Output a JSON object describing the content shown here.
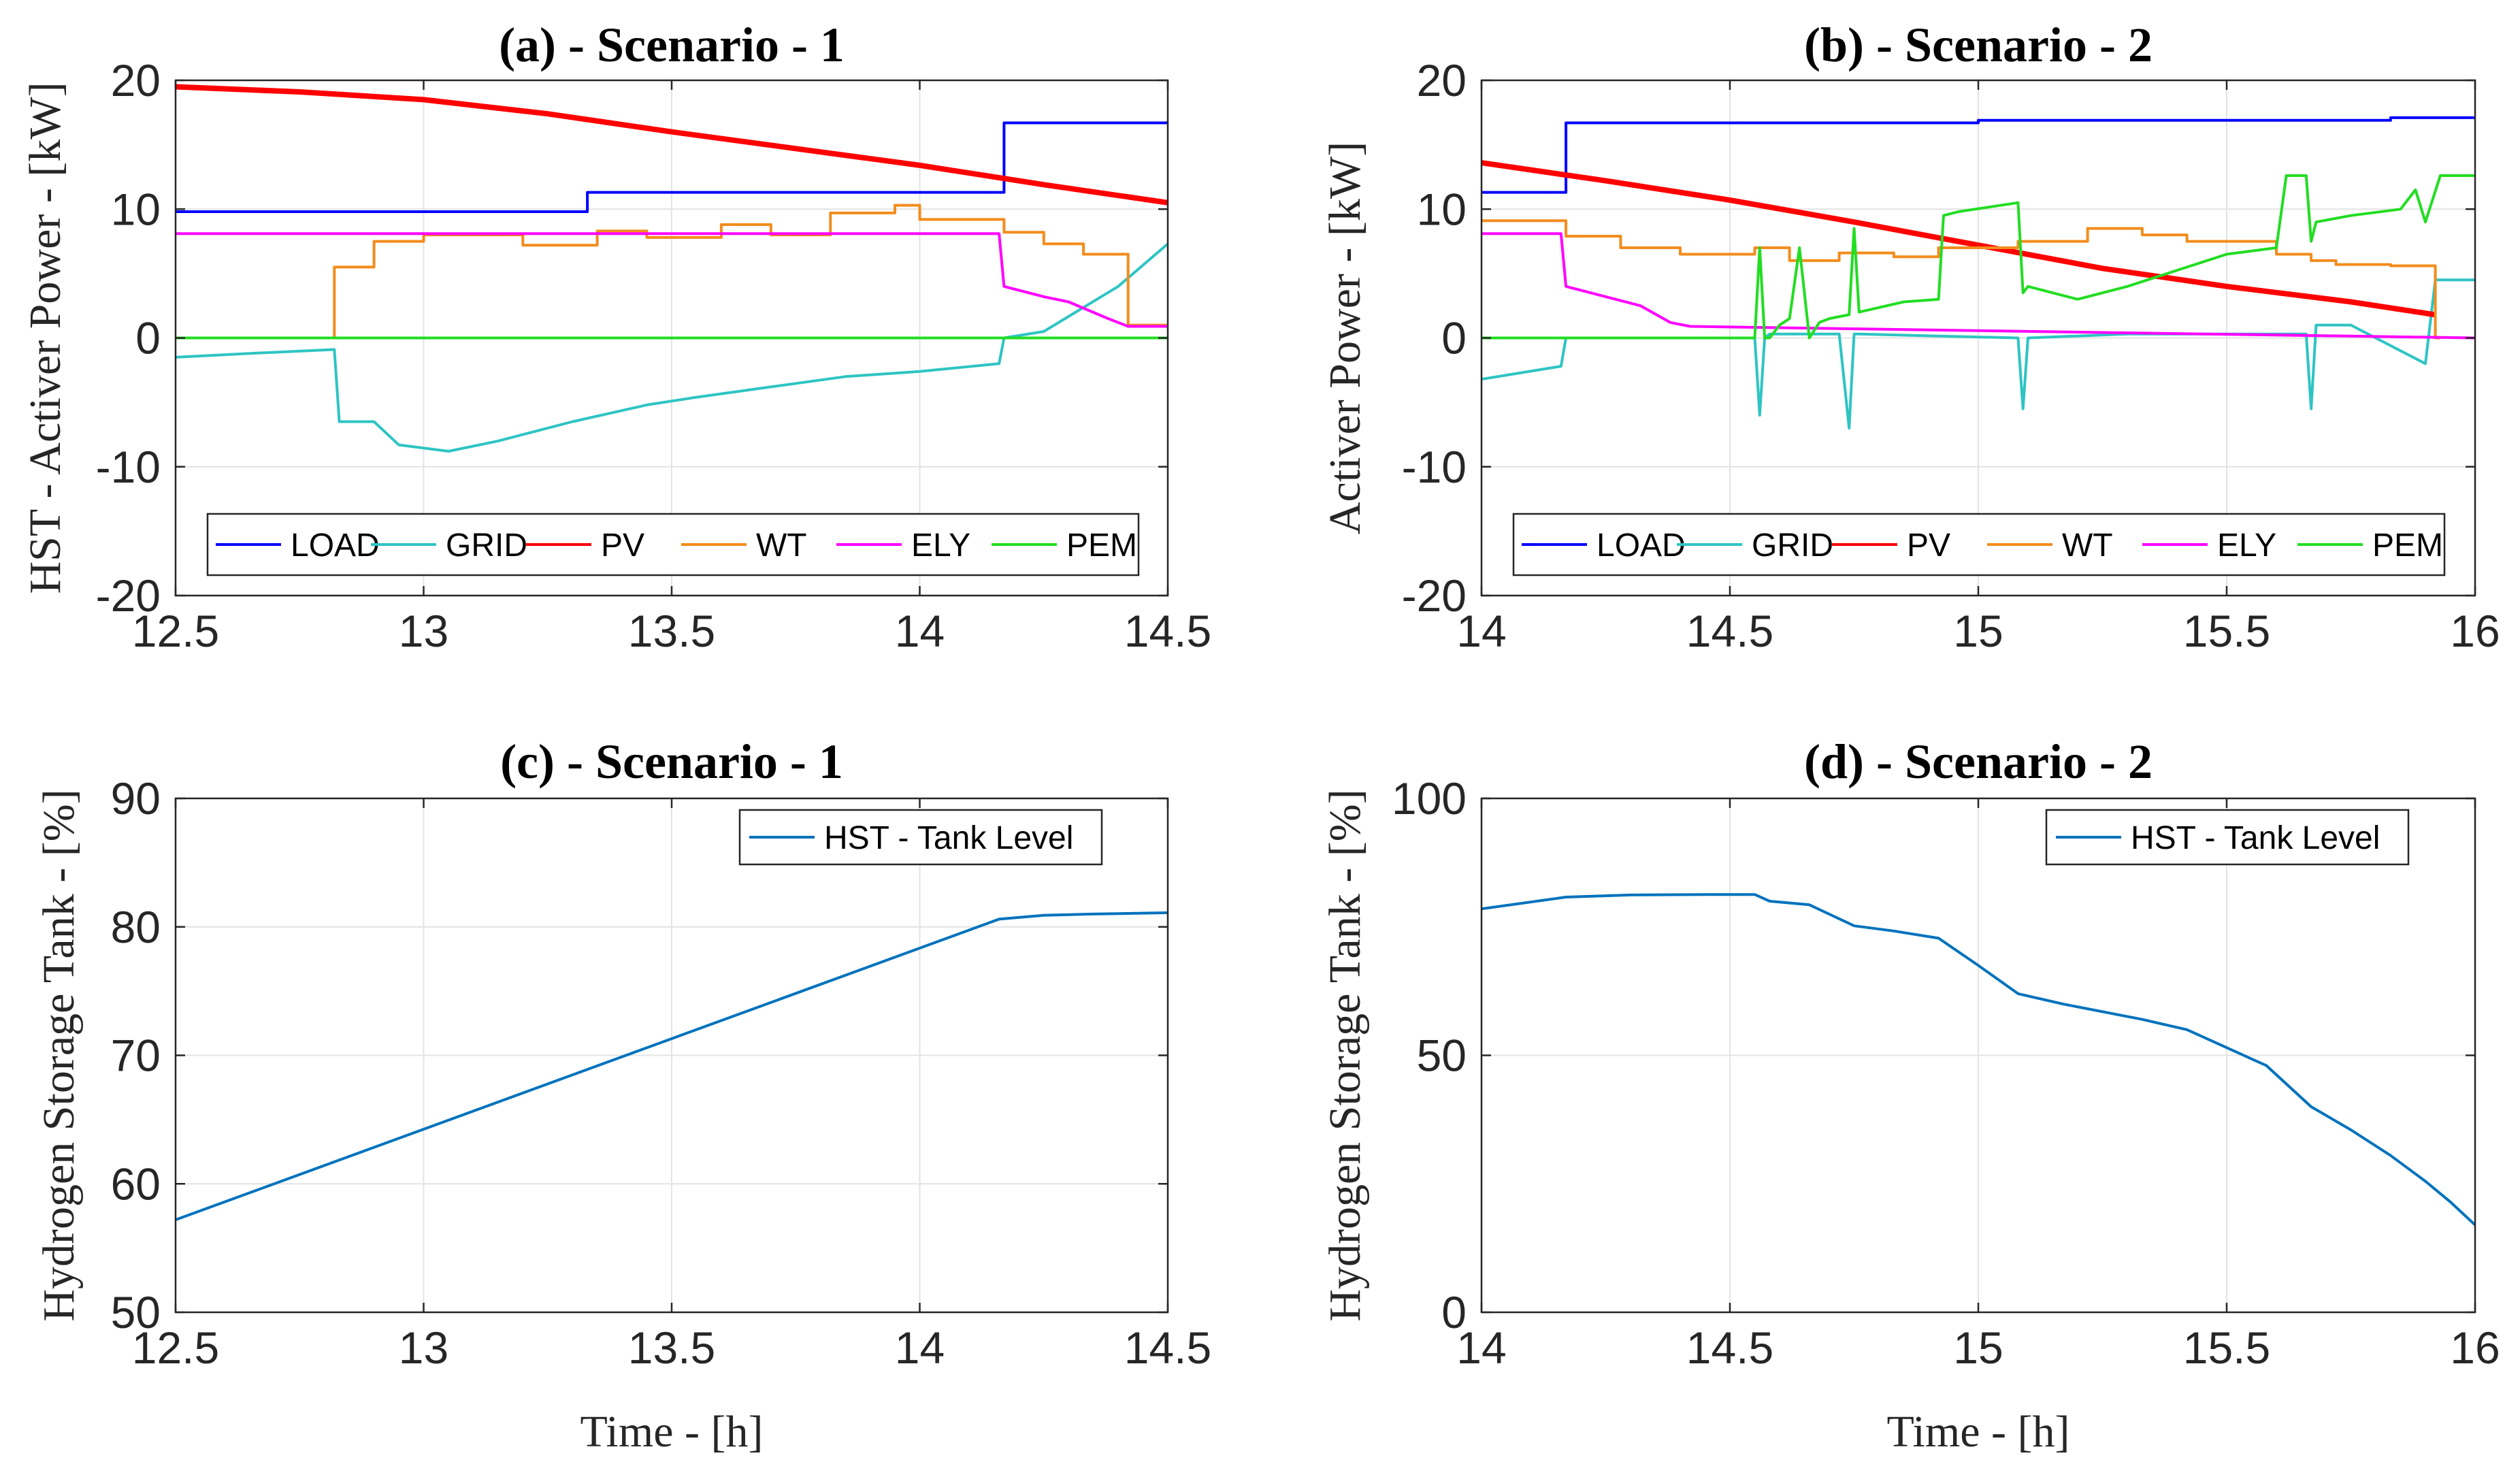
{
  "chart_data": [
    {
      "type": "line",
      "title": "(a) - Scenario - 1",
      "ylabel": "HST - Activer Power - [kW]",
      "xlabel": "",
      "xlim": [
        12.5,
        14.5
      ],
      "ylim": [
        -20,
        20
      ],
      "xticks": [
        12.5,
        13,
        13.5,
        14,
        14.5
      ],
      "xtick_labels": [
        "12.5",
        "13",
        "13.5",
        "14",
        "14.5"
      ],
      "yticks": [
        -20,
        -10,
        0,
        10,
        20
      ],
      "ytick_labels": [
        "-20",
        "-10",
        "0",
        "10",
        "20"
      ],
      "grid": true,
      "legend_position": "bottom",
      "series": [
        {
          "name": "LOAD",
          "color": "#0000ff",
          "step": true,
          "x": [
            12.5,
            13.33,
            13.33,
            14.17,
            14.17,
            14.5
          ],
          "y": [
            9.8,
            9.8,
            11.3,
            11.3,
            16.7,
            16.7
          ]
        },
        {
          "name": "GRID",
          "color": "#2ec4c4",
          "step": false,
          "x": [
            12.5,
            12.65,
            12.82,
            12.83,
            12.9,
            12.95,
            13.05,
            13.15,
            13.3,
            13.45,
            13.55,
            13.7,
            13.85,
            14.0,
            14.16,
            14.17,
            14.25,
            14.4,
            14.5
          ],
          "y": [
            -1.5,
            -1.2,
            -0.9,
            -6.5,
            -6.5,
            -8.3,
            -8.8,
            -8.0,
            -6.5,
            -5.2,
            -4.6,
            -3.8,
            -3.0,
            -2.6,
            -2.0,
            0.0,
            0.5,
            4.0,
            7.3
          ]
        },
        {
          "name": "PV",
          "color": "#ff0000",
          "step": false,
          "x": [
            12.5,
            12.75,
            13.0,
            13.25,
            13.5,
            13.75,
            14.0,
            14.25,
            14.5
          ],
          "y": [
            19.5,
            19.1,
            18.5,
            17.4,
            16.0,
            14.7,
            13.4,
            11.9,
            10.5
          ]
        },
        {
          "name": "WT",
          "color": "#f28c1c",
          "step": true,
          "x": [
            12.5,
            12.82,
            12.82,
            12.9,
            12.9,
            13.0,
            13.0,
            13.2,
            13.2,
            13.35,
            13.35,
            13.45,
            13.45,
            13.6,
            13.6,
            13.7,
            13.7,
            13.82,
            13.82,
            13.95,
            13.95,
            14.0,
            14.0,
            14.17,
            14.17,
            14.25,
            14.25,
            14.33,
            14.33,
            14.42,
            14.42,
            14.5
          ],
          "y": [
            0,
            0,
            5.5,
            5.5,
            7.5,
            7.5,
            8.0,
            8.0,
            7.2,
            7.2,
            8.3,
            8.3,
            7.8,
            7.8,
            8.8,
            8.8,
            8.0,
            8.0,
            9.7,
            9.7,
            10.3,
            10.3,
            9.2,
            9.2,
            8.2,
            8.2,
            7.3,
            7.3,
            6.5,
            6.5,
            1.0,
            1.0
          ]
        },
        {
          "name": "ELY",
          "color": "#ff00ff",
          "step": false,
          "x": [
            12.5,
            14.16,
            14.17,
            14.25,
            14.3,
            14.38,
            14.42,
            14.5
          ],
          "y": [
            8.1,
            8.1,
            4.0,
            3.2,
            2.8,
            1.5,
            0.9,
            0.9
          ]
        },
        {
          "name": "PEM",
          "color": "#22dd22",
          "step": false,
          "x": [
            12.5,
            14.5
          ],
          "y": [
            0,
            0
          ]
        }
      ]
    },
    {
      "type": "line",
      "title": "(b) - Scenario - 2",
      "ylabel": "Activer Power - [kW]",
      "xlabel": "",
      "xlim": [
        14,
        16
      ],
      "ylim": [
        -20,
        20
      ],
      "xticks": [
        14,
        14.5,
        15,
        15.5,
        16
      ],
      "xtick_labels": [
        "14",
        "14.5",
        "15",
        "15.5",
        "16"
      ],
      "yticks": [
        -20,
        -10,
        0,
        10,
        20
      ],
      "ytick_labels": [
        "-20",
        "-10",
        "0",
        "10",
        "20"
      ],
      "grid": true,
      "legend_position": "bottom",
      "series": [
        {
          "name": "LOAD",
          "color": "#0000ff",
          "step": true,
          "x": [
            14.0,
            14.17,
            14.17,
            15.0,
            15.0,
            15.83,
            15.83,
            16.0
          ],
          "y": [
            11.3,
            11.3,
            16.7,
            16.7,
            16.9,
            16.9,
            17.1,
            17.1
          ]
        },
        {
          "name": "GRID",
          "color": "#2ec4c4",
          "step": false,
          "x": [
            14.0,
            14.16,
            14.17,
            14.55,
            14.56,
            14.57,
            14.58,
            14.72,
            14.74,
            14.75,
            14.76,
            15.08,
            15.09,
            15.1,
            15.3,
            15.66,
            15.67,
            15.68,
            15.75,
            15.9,
            15.92,
            15.93,
            16.0
          ],
          "y": [
            -3.2,
            -2.2,
            0.0,
            0.0,
            -6.0,
            0.0,
            0.3,
            0.3,
            -7.0,
            0.3,
            0.3,
            0.0,
            -5.5,
            0.0,
            0.3,
            0.3,
            -5.5,
            1.0,
            1.0,
            -2.0,
            4.5,
            4.5,
            4.5
          ]
        },
        {
          "name": "PV",
          "color": "#ff0000",
          "step": false,
          "x": [
            14.0,
            14.25,
            14.5,
            14.75,
            15.0,
            15.25,
            15.5,
            15.75,
            15.92
          ],
          "y": [
            13.6,
            12.2,
            10.7,
            9.0,
            7.2,
            5.4,
            4.0,
            2.8,
            1.8
          ]
        },
        {
          "name": "WT",
          "color": "#f28c1c",
          "step": true,
          "x": [
            14.0,
            14.17,
            14.17,
            14.28,
            14.28,
            14.4,
            14.4,
            14.55,
            14.55,
            14.62,
            14.62,
            14.72,
            14.72,
            14.83,
            14.83,
            14.92,
            14.92,
            15.08,
            15.08,
            15.22,
            15.22,
            15.33,
            15.33,
            15.42,
            15.42,
            15.6,
            15.6,
            15.67,
            15.67,
            15.72,
            15.72,
            15.83,
            15.83,
            15.92,
            15.92,
            15.93
          ],
          "y": [
            9.1,
            9.1,
            7.9,
            7.9,
            7.0,
            7.0,
            6.5,
            6.5,
            7.0,
            7.0,
            6.0,
            6.0,
            6.6,
            6.6,
            6.3,
            6.3,
            7.0,
            7.0,
            7.5,
            7.5,
            8.5,
            8.5,
            8.0,
            8.0,
            7.5,
            7.5,
            6.5,
            6.5,
            6.0,
            6.0,
            5.7,
            5.7,
            5.6,
            5.6,
            0.0,
            0.0
          ]
        },
        {
          "name": "ELY",
          "color": "#ff00ff",
          "step": false,
          "x": [
            14.0,
            14.16,
            14.17,
            14.25,
            14.32,
            14.38,
            14.42,
            16.0
          ],
          "y": [
            8.1,
            8.1,
            4.0,
            3.2,
            2.5,
            1.2,
            0.9,
            0.0
          ]
        },
        {
          "name": "PEM",
          "color": "#22dd22",
          "step": false,
          "x": [
            14.0,
            14.55,
            14.56,
            14.57,
            14.58,
            14.6,
            14.62,
            14.64,
            14.66,
            14.68,
            14.7,
            14.74,
            14.75,
            14.76,
            14.85,
            14.92,
            14.93,
            14.96,
            15.08,
            15.09,
            15.1,
            15.2,
            15.3,
            15.5,
            15.6,
            15.62,
            15.66,
            15.67,
            15.68,
            15.75,
            15.85,
            15.88,
            15.9,
            15.93,
            16.0
          ],
          "y": [
            0.0,
            0.0,
            7.0,
            0.0,
            0.0,
            1.0,
            1.5,
            7.0,
            0.0,
            1.2,
            1.5,
            1.8,
            8.5,
            2.0,
            2.8,
            3.0,
            9.5,
            9.8,
            10.5,
            3.5,
            4.0,
            3.0,
            4.0,
            6.5,
            7.0,
            12.6,
            12.6,
            7.5,
            9.0,
            9.5,
            10.0,
            11.5,
            9.0,
            12.6,
            12.6
          ]
        }
      ]
    },
    {
      "type": "line",
      "title": "(c) - Scenario - 1",
      "ylabel": "Hydrogen Storage Tank - [%]",
      "xlabel": "Time - [h]",
      "xlim": [
        12.5,
        14.5
      ],
      "ylim": [
        50,
        90
      ],
      "xticks": [
        12.5,
        13,
        13.5,
        14,
        14.5
      ],
      "xtick_labels": [
        "12.5",
        "13",
        "13.5",
        "14",
        "14.5"
      ],
      "yticks": [
        50,
        60,
        70,
        80,
        90
      ],
      "ytick_labels": [
        "50",
        "60",
        "70",
        "80",
        "90"
      ],
      "grid": true,
      "legend_position": "top-right",
      "series": [
        {
          "name": "HST - Tank Level",
          "color": "#0072bd",
          "step": false,
          "x": [
            12.5,
            14.16,
            14.25,
            14.35,
            14.5
          ],
          "y": [
            57.2,
            80.6,
            80.9,
            81.0,
            81.1
          ]
        }
      ]
    },
    {
      "type": "line",
      "title": "(d) - Scenario - 2",
      "ylabel": "Hydrogen Storage Tank - [%]",
      "xlabel": "Time - [h]",
      "xlim": [
        14,
        16
      ],
      "ylim": [
        0,
        100
      ],
      "xticks": [
        14,
        14.5,
        15,
        15.5,
        16
      ],
      "xtick_labels": [
        "14",
        "14.5",
        "15",
        "15.5",
        "16"
      ],
      "yticks": [
        0,
        50,
        100
      ],
      "ytick_labels": [
        "0",
        "50",
        "100"
      ],
      "grid": true,
      "legend_position": "top-right",
      "series": [
        {
          "name": "HST - Tank Level",
          "color": "#0072bd",
          "step": false,
          "x": [
            14.0,
            14.17,
            14.3,
            14.45,
            14.55,
            14.58,
            14.66,
            14.75,
            14.83,
            14.92,
            15.0,
            15.08,
            15.17,
            15.33,
            15.42,
            15.5,
            15.58,
            15.67,
            15.75,
            15.83,
            15.9,
            15.95,
            16.0
          ],
          "y": [
            78.5,
            80.8,
            81.2,
            81.3,
            81.3,
            80.0,
            79.3,
            75.2,
            74.2,
            72.8,
            67.5,
            62.0,
            60.0,
            57.0,
            55.0,
            51.5,
            48.0,
            40.0,
            35.5,
            30.5,
            25.5,
            21.5,
            17.0
          ]
        }
      ]
    }
  ]
}
